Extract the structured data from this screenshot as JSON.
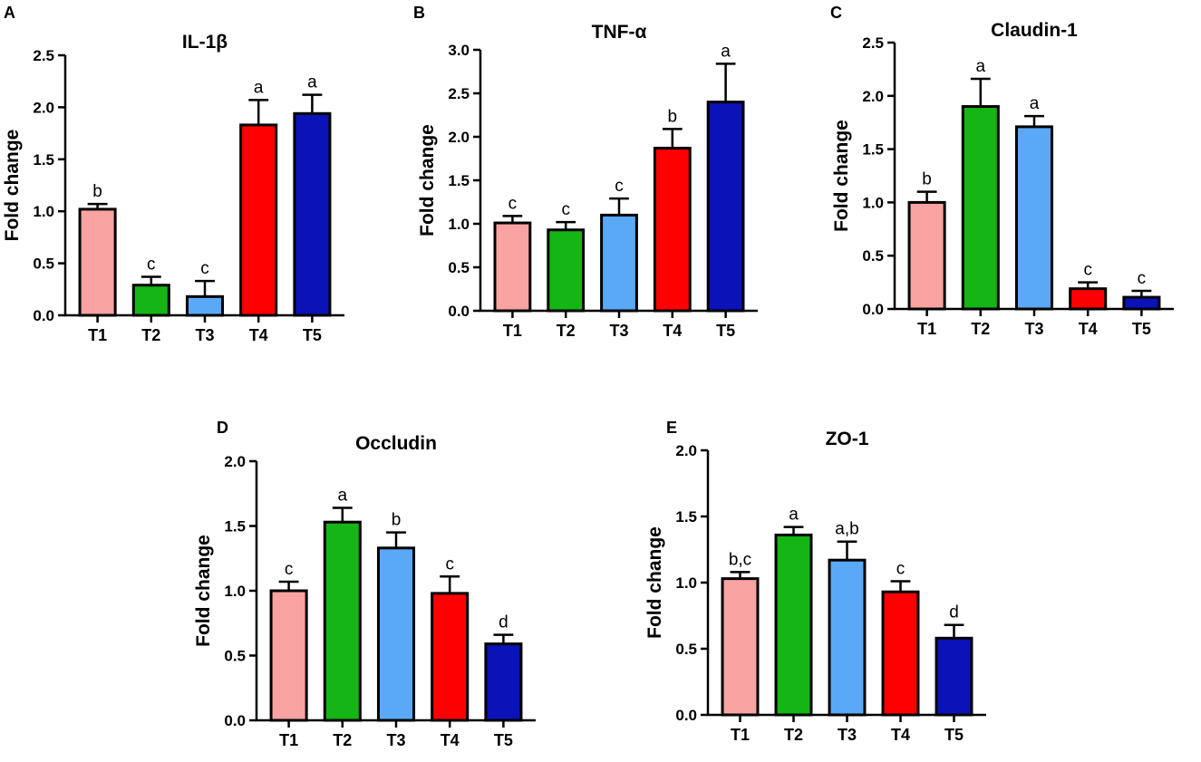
{
  "colors": {
    "T1": "#f9a3a3",
    "T2": "#14b514",
    "T3": "#5aa9f7",
    "T4": "#ff0000",
    "T5": "#0a12b8",
    "axis": "#000000"
  },
  "chart_data": [
    {
      "panel": "A",
      "type": "bar",
      "title": "IL-1β",
      "ylabel": "Fold change",
      "xlabel": "",
      "categories": [
        "T1",
        "T2",
        "T3",
        "T4",
        "T5"
      ],
      "values": [
        1.02,
        0.29,
        0.18,
        1.83,
        1.94
      ],
      "errors": [
        0.05,
        0.08,
        0.15,
        0.24,
        0.18
      ],
      "significance": [
        "b",
        "c",
        "c",
        "a",
        "a"
      ],
      "ylim": [
        0,
        2.5
      ],
      "yticks": [
        "0.0",
        "0.5",
        "1.0",
        "1.5",
        "2.0",
        "2.5"
      ]
    },
    {
      "panel": "B",
      "type": "bar",
      "title": "TNF-α",
      "ylabel": "Fold change",
      "xlabel": "",
      "categories": [
        "T1",
        "T2",
        "T3",
        "T4",
        "T5"
      ],
      "values": [
        1.01,
        0.93,
        1.1,
        1.87,
        2.4
      ],
      "errors": [
        0.08,
        0.09,
        0.19,
        0.22,
        0.44
      ],
      "significance": [
        "c",
        "c",
        "c",
        "b",
        "a"
      ],
      "ylim": [
        0,
        3.0
      ],
      "yticks": [
        "0.0",
        "0.5",
        "1.0",
        "1.5",
        "2.0",
        "2.5",
        "3.0"
      ]
    },
    {
      "panel": "C",
      "type": "bar",
      "title": "Claudin-1",
      "ylabel": "Fold change",
      "xlabel": "",
      "categories": [
        "T1",
        "T2",
        "T3",
        "T4",
        "T5"
      ],
      "values": [
        1.0,
        1.9,
        1.71,
        0.19,
        0.11
      ],
      "errors": [
        0.1,
        0.26,
        0.1,
        0.06,
        0.06
      ],
      "significance": [
        "b",
        "a",
        "a",
        "c",
        "c"
      ],
      "ylim": [
        0,
        2.5
      ],
      "yticks": [
        "0.0",
        "0.5",
        "1.0",
        "1.5",
        "2.0",
        "2.5"
      ]
    },
    {
      "panel": "D",
      "type": "bar",
      "title": "Occludin",
      "ylabel": "Fold change",
      "xlabel": "",
      "categories": [
        "T1",
        "T2",
        "T3",
        "T4",
        "T5"
      ],
      "values": [
        1.0,
        1.53,
        1.33,
        0.98,
        0.59
      ],
      "errors": [
        0.07,
        0.11,
        0.12,
        0.13,
        0.07
      ],
      "significance": [
        "c",
        "a",
        "b",
        "c",
        "d"
      ],
      "ylim": [
        0,
        2.0
      ],
      "yticks": [
        "0.0",
        "0.5",
        "1.0",
        "1.5",
        "2.0"
      ]
    },
    {
      "panel": "E",
      "type": "bar",
      "title": "ZO-1",
      "ylabel": "Fold change",
      "xlabel": "",
      "categories": [
        "T1",
        "T2",
        "T3",
        "T4",
        "T5"
      ],
      "values": [
        1.03,
        1.36,
        1.17,
        0.93,
        0.58
      ],
      "errors": [
        0.05,
        0.06,
        0.14,
        0.08,
        0.1
      ],
      "significance": [
        "b,c",
        "a",
        "a,b",
        "c",
        "d"
      ],
      "ylim": [
        0,
        2.0
      ],
      "yticks": [
        "0.0",
        "0.5",
        "1.0",
        "1.5",
        "2.0"
      ]
    }
  ]
}
